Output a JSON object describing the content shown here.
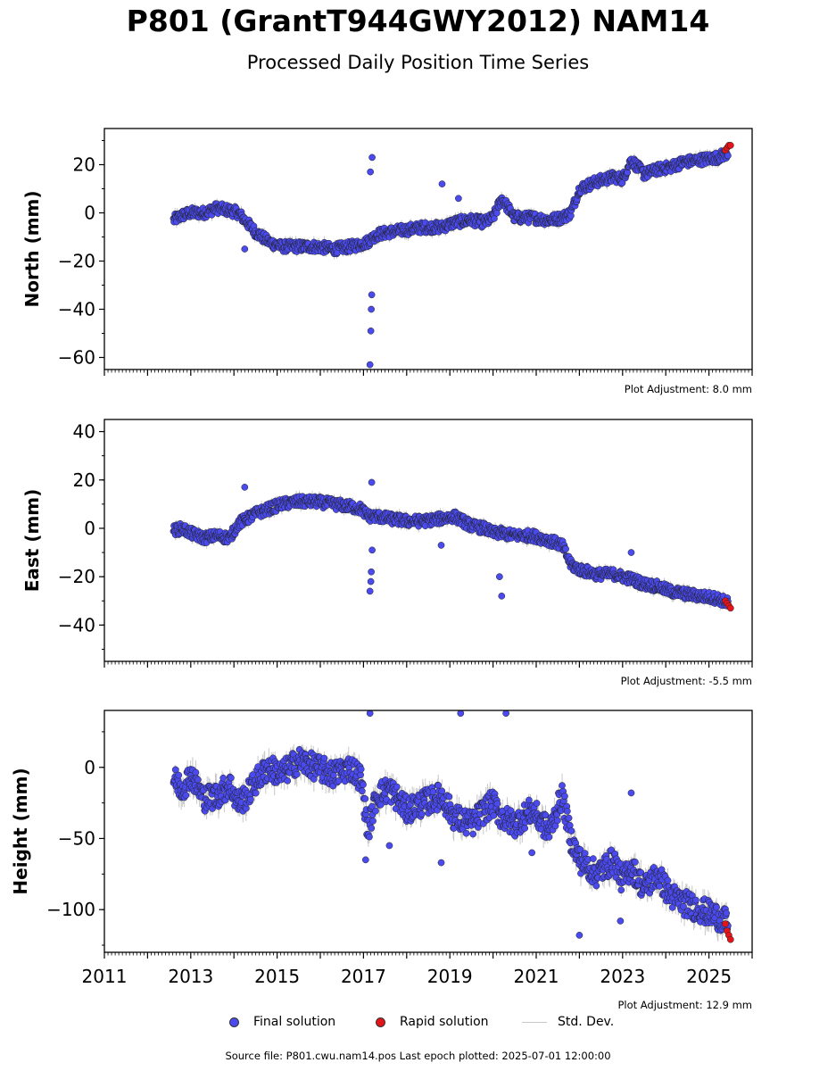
{
  "title": "P801 (GrantT944GWY2012) NAM14",
  "subtitle": "Processed Daily Position Time Series",
  "legend": {
    "final": "Final solution",
    "rapid": "Rapid solution",
    "std": "Std. Dev."
  },
  "colors": {
    "final": "#4a4aef",
    "rapid": "#e3141a",
    "std": "#c8c8c8"
  },
  "source": "Source file: P801.cwu.nam14.pos  Last epoch plotted: 2025-07-01 12:00:00",
  "chart_data": [
    {
      "type": "scatter",
      "ylabel": "North (mm)",
      "adjustment": "Plot Adjustment: 8.0 mm",
      "xlim": [
        2011,
        2026
      ],
      "ylim": [
        -65,
        35
      ],
      "yticks": [
        20,
        0,
        -20,
        -40,
        -60
      ],
      "ytick_labels": [
        "20",
        "0",
        "−20",
        "−40",
        "−60"
      ],
      "final_series": {
        "name": "Final solution",
        "x": [
          2012.6,
          2012.8,
          2013.0,
          2013.3,
          2013.6,
          2013.9,
          2014.1,
          2014.3,
          2014.5,
          2014.8,
          2015.1,
          2015.5,
          2015.9,
          2016.3,
          2016.7,
          2016.95,
          2017.1,
          2017.3,
          2017.6,
          2018.0,
          2018.4,
          2018.8,
          2019.1,
          2019.5,
          2019.8,
          2020.0,
          2020.2,
          2020.5,
          2020.9,
          2021.3,
          2021.6,
          2021.8,
          2022.0,
          2022.4,
          2022.8,
          2023.0,
          2023.2,
          2023.5,
          2023.8,
          2024.1,
          2024.4,
          2024.8,
          2025.2,
          2025.45
        ],
        "y": [
          -3,
          -1,
          0,
          0,
          2,
          1,
          0,
          -4,
          -8,
          -12,
          -14,
          -14,
          -14,
          -15,
          -14,
          -13,
          -12,
          -9,
          -8,
          -7,
          -6,
          -6,
          -4,
          -3,
          -4,
          -2,
          6,
          -2,
          -2,
          -3,
          -2,
          0,
          10,
          13,
          15,
          14,
          22,
          16,
          18,
          19,
          21,
          22,
          23,
          25
        ],
        "outliers_x": [
          2017.15,
          2017.17,
          2017.18,
          2017.19,
          2017.2,
          2017.16,
          2014.25,
          2018.82,
          2019.2
        ],
        "outliers_y": [
          -63,
          -49,
          -40,
          -34,
          23,
          17,
          -15,
          12,
          6
        ]
      },
      "rapid_series": {
        "name": "Rapid solution",
        "x": [
          2025.38,
          2025.42,
          2025.46,
          2025.5
        ],
        "y": [
          26,
          27,
          28,
          28
        ]
      }
    },
    {
      "type": "scatter",
      "ylabel": "East (mm)",
      "adjustment": "Plot Adjustment: -5.5 mm",
      "xlim": [
        2011,
        2026
      ],
      "ylim": [
        -55,
        45
      ],
      "yticks": [
        40,
        20,
        0,
        -20,
        -40
      ],
      "ytick_labels": [
        "40",
        "20",
        "0",
        "−20",
        "−40"
      ],
      "final_series": {
        "name": "Final solution",
        "x": [
          2012.6,
          2012.8,
          2013.0,
          2013.3,
          2013.6,
          2013.9,
          2014.1,
          2014.3,
          2014.5,
          2014.8,
          2015.1,
          2015.5,
          2015.9,
          2016.3,
          2016.7,
          2016.95,
          2017.1,
          2017.3,
          2017.6,
          2018.0,
          2018.4,
          2018.8,
          2019.1,
          2019.5,
          2019.8,
          2020.0,
          2020.2,
          2020.5,
          2020.9,
          2021.3,
          2021.6,
          2021.8,
          2022.0,
          2022.4,
          2022.8,
          2023.0,
          2023.2,
          2023.5,
          2023.8,
          2024.1,
          2024.4,
          2024.8,
          2025.2,
          2025.45
        ],
        "y": [
          -1,
          0,
          -2,
          -4,
          -3,
          -4,
          2,
          4,
          6,
          8,
          10,
          11,
          11,
          10,
          9,
          8,
          5,
          5,
          4,
          3,
          3,
          4,
          5,
          1,
          0,
          -2,
          -2,
          -3,
          -3,
          -5,
          -7,
          -15,
          -17,
          -19,
          -19,
          -20,
          -21,
          -23,
          -24,
          -26,
          -27,
          -28,
          -29,
          -31
        ],
        "outliers_x": [
          2017.15,
          2017.17,
          2017.18,
          2017.19,
          2017.2,
          2014.25,
          2018.8,
          2020.2,
          2020.15,
          2023.2
        ],
        "outliers_y": [
          -26,
          -22,
          -18,
          19,
          -9,
          17,
          -7,
          -28,
          -20,
          -10
        ]
      },
      "rapid_series": {
        "name": "Rapid solution",
        "x": [
          2025.38,
          2025.42,
          2025.46,
          2025.5
        ],
        "y": [
          -30,
          -31,
          -32,
          -33
        ]
      }
    },
    {
      "type": "scatter",
      "ylabel": "Height (mm)",
      "adjustment": "Plot Adjustment: 12.9 mm",
      "xlim": [
        2011,
        2026
      ],
      "ylim": [
        -130,
        40
      ],
      "yticks": [
        0,
        -50,
        -100
      ],
      "ytick_labels": [
        "0",
        "−50",
        "−100"
      ],
      "xticks": [
        2011,
        2013,
        2015,
        2017,
        2019,
        2021,
        2023,
        2025
      ],
      "xtick_labels": [
        "2011",
        "2013",
        "2015",
        "2017",
        "2019",
        "2021",
        "2023",
        "2025"
      ],
      "final_series": {
        "name": "Final solution",
        "x": [
          2012.6,
          2012.8,
          2013.0,
          2013.3,
          2013.6,
          2013.9,
          2014.1,
          2014.3,
          2014.5,
          2014.8,
          2015.1,
          2015.5,
          2015.9,
          2016.3,
          2016.7,
          2016.95,
          2017.1,
          2017.3,
          2017.6,
          2018.0,
          2018.4,
          2018.8,
          2019.1,
          2019.5,
          2019.8,
          2020.0,
          2020.2,
          2020.5,
          2020.9,
          2021.3,
          2021.6,
          2021.8,
          2022.0,
          2022.4,
          2022.8,
          2023.0,
          2023.2,
          2023.5,
          2023.8,
          2024.1,
          2024.4,
          2024.8,
          2025.2,
          2025.45
        ],
        "y": [
          -8,
          -15,
          -5,
          -22,
          -20,
          -12,
          -25,
          -20,
          -10,
          0,
          -5,
          5,
          0,
          -5,
          0,
          -8,
          -45,
          -20,
          -15,
          -30,
          -25,
          -20,
          -35,
          -40,
          -30,
          -25,
          -35,
          -40,
          -30,
          -45,
          -20,
          -50,
          -65,
          -75,
          -65,
          -80,
          -70,
          -85,
          -75,
          -90,
          -95,
          -100,
          -105,
          -110
        ],
        "outliers_x": [
          2017.05,
          2017.15,
          2019.25,
          2020.3,
          2022.0,
          2022.95,
          2023.2,
          2018.8,
          2017.6,
          2020.9
        ],
        "outliers_y": [
          -65,
          38,
          38,
          38,
          -118,
          -108,
          -18,
          -67,
          -55,
          -60
        ]
      },
      "rapid_series": {
        "name": "Rapid solution",
        "x": [
          2025.38,
          2025.42,
          2025.46,
          2025.5
        ],
        "y": [
          -110,
          -115,
          -118,
          -121
        ]
      }
    }
  ]
}
